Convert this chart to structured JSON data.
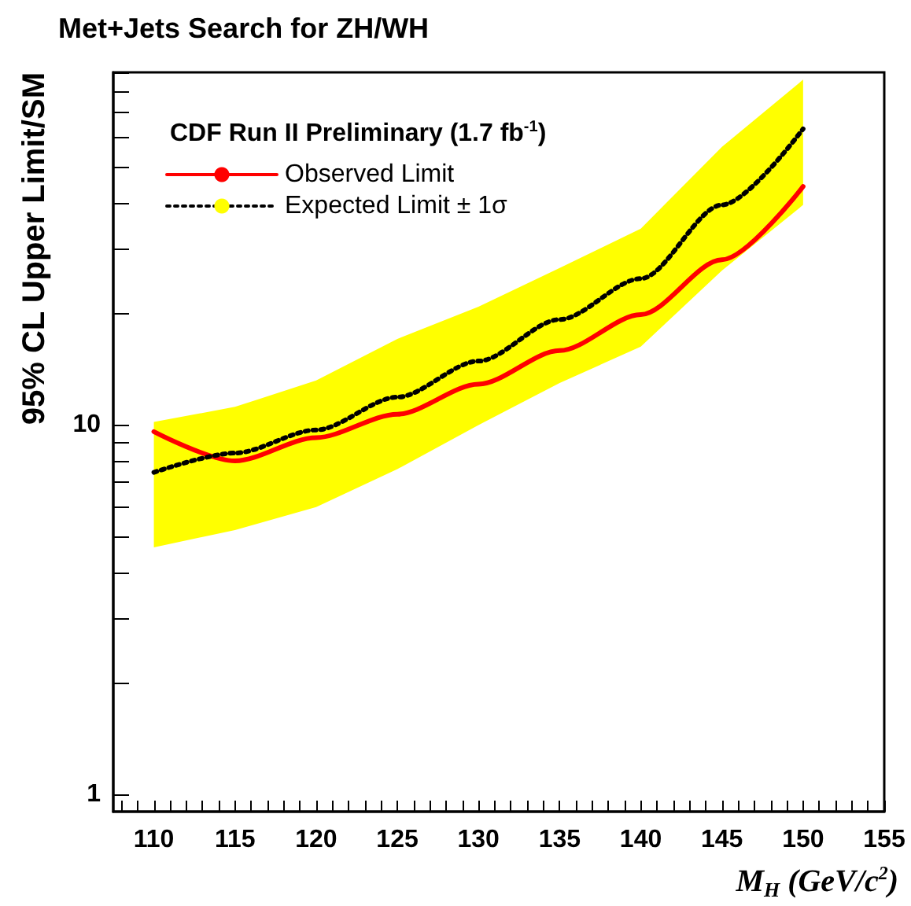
{
  "chart_data": {
    "type": "line",
    "title": "Met+Jets Search for ZH/WH",
    "xlabel": "M$_{H}$ (GeV/c$^{2}$)",
    "ylabel": "95% CL Upper Limit/SM",
    "legend_title": "CDF Run II Preliminary (1.7 fb$^{-1}$)",
    "legend": "top left",
    "grid": false,
    "marker": "none",
    "log": "y",
    "x": [
      110,
      115,
      120,
      125,
      130,
      135,
      140,
      145,
      150
    ],
    "series": [
      {
        "name": "Observed Limit",
        "color": "#ff0000",
        "line_style": "solid",
        "values": [
          9.6,
          8.0,
          9.25,
          10.7,
          12.9,
          15.9,
          19.9,
          28.0,
          44.2
        ]
      },
      {
        "name": "Expected Limit ± 1σ",
        "color": "#000000",
        "line_style": "dotted",
        "values": [
          7.45,
          8.4,
          9.7,
          11.9,
          14.9,
          19.3,
          24.9,
          39.4,
          63.3
        ],
        "lower": [
          4.67,
          5.2,
          6.0,
          7.6,
          10.0,
          13.0,
          16.3,
          26.2,
          39.4
        ],
        "upper": [
          10.2,
          11.2,
          13.2,
          17.1,
          20.9,
          26.6,
          34.0,
          56.6,
          86.0
        ]
      }
    ],
    "xlim": [
      107.5,
      155
    ],
    "xticks": [
      {
        "value": 108,
        "label": null
      },
      {
        "value": 109,
        "label": null
      },
      110,
      {
        "value": 111,
        "label": null
      },
      {
        "value": 112,
        "label": null
      },
      {
        "value": 113,
        "label": null
      },
      {
        "value": 114,
        "label": null
      },
      115,
      {
        "value": 116,
        "label": null
      },
      {
        "value": 117,
        "label": null
      },
      {
        "value": 118,
        "label": null
      },
      {
        "value": 119,
        "label": null
      },
      120,
      {
        "value": 121,
        "label": null
      },
      {
        "value": 122,
        "label": null
      },
      {
        "value": 123,
        "label": null
      },
      {
        "value": 124,
        "label": null
      },
      125,
      {
        "value": 126,
        "label": null
      },
      {
        "value": 127,
        "label": null
      },
      {
        "value": 128,
        "label": null
      },
      {
        "value": 129,
        "label": null
      },
      130,
      {
        "value": 131,
        "label": null
      },
      {
        "value": 132,
        "label": null
      },
      {
        "value": 133,
        "label": null
      },
      {
        "value": 134,
        "label": null
      },
      135,
      {
        "value": 136,
        "label": null
      },
      {
        "value": 137,
        "label": null
      },
      {
        "value": 138,
        "label": null
      },
      {
        "value": 139,
        "label": null
      },
      140,
      {
        "value": 141,
        "label": null
      },
      {
        "value": 142,
        "label": null
      },
      {
        "value": 143,
        "label": null
      },
      {
        "value": 144,
        "label": null
      },
      145,
      {
        "value": 146,
        "label": null
      },
      {
        "value": 147,
        "label": null
      },
      {
        "value": 148,
        "label": null
      },
      {
        "value": 149,
        "label": null
      },
      150,
      {
        "value": 151,
        "label": null
      },
      {
        "value": 152,
        "label": null
      },
      {
        "value": 153,
        "label": null
      },
      {
        "value": 154,
        "label": null
      },
      155
    ],
    "ylim": [
      0.9,
      90
    ],
    "yticks": [
      1,
      {
        "value": 2,
        "label": null
      },
      {
        "value": 3,
        "label": null
      },
      {
        "value": 4,
        "label": null
      },
      {
        "value": 5,
        "label": null
      },
      {
        "value": 6,
        "label": null
      },
      {
        "value": 7,
        "label": null
      },
      {
        "value": 8,
        "label": null
      },
      {
        "value": 9,
        "label": null
      },
      10,
      {
        "value": 20,
        "label": null
      },
      {
        "value": 30,
        "label": null
      },
      {
        "value": 40,
        "label": null
      },
      {
        "value": 50,
        "label": null
      },
      {
        "value": 60,
        "label": null
      },
      {
        "value": 70,
        "label": null
      },
      {
        "value": 80,
        "label": null
      },
      {
        "value": 90,
        "label": null
      }
    ]
  }
}
